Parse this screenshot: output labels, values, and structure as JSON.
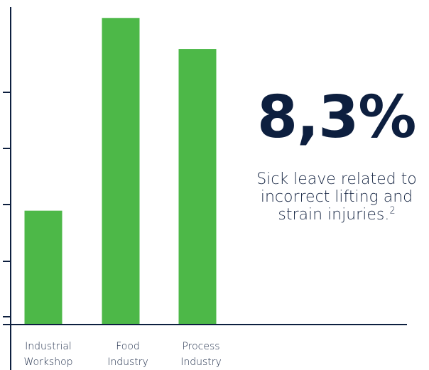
{
  "chart_data": {
    "type": "bar",
    "categories": [
      [
        "Industrial",
        "Workshop"
      ],
      [
        "Food",
        "Industry"
      ],
      [
        "Process",
        "Industry"
      ]
    ],
    "values": [
      20.5,
      55.2,
      49.6
    ],
    "ylim": [
      0,
      56
    ],
    "colors": {
      "bar": "#4db848",
      "axis": "#0d1f3f"
    }
  },
  "stat": {
    "value": "8,3%",
    "caption_lines": [
      "Sick leave related to",
      "incorrect lifting and",
      "strain injuries."
    ],
    "footnote": "2"
  }
}
